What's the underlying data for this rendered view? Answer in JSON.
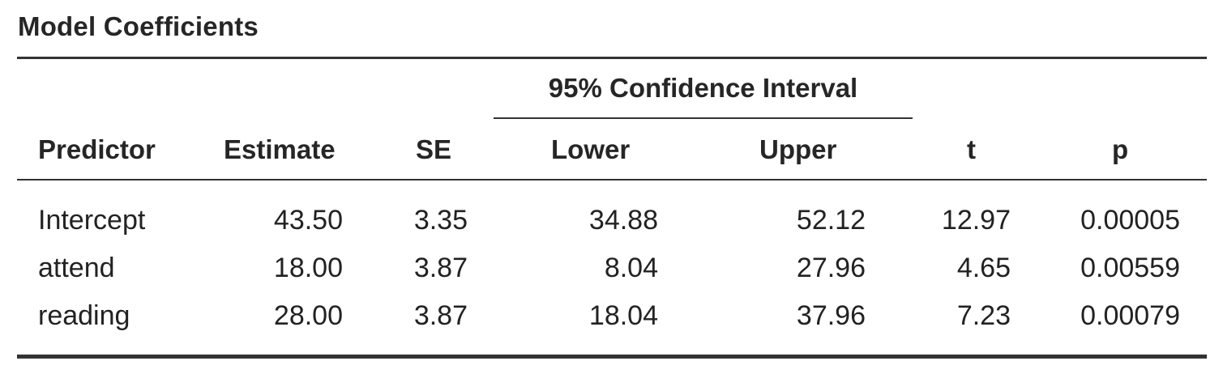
{
  "table": {
    "title": "Model Coefficients",
    "group_header": "95% Confidence Interval",
    "headers": {
      "predictor": "Predictor",
      "estimate": "Estimate",
      "se": "SE",
      "lower": "Lower",
      "upper": "Upper",
      "t": "t",
      "p": "p"
    },
    "rows": [
      {
        "predictor": "Intercept",
        "estimate": "43.50",
        "se": "3.35",
        "lower": "34.88",
        "upper": "52.12",
        "t": "12.97",
        "p": "0.00005"
      },
      {
        "predictor": "attend",
        "estimate": "18.00",
        "se": "3.87",
        "lower": "8.04",
        "upper": "27.96",
        "t": "4.65",
        "p": "0.00559"
      },
      {
        "predictor": "reading",
        "estimate": "28.00",
        "se": "3.87",
        "lower": "18.04",
        "upper": "37.96",
        "t": "7.23",
        "p": "0.00079"
      }
    ]
  }
}
